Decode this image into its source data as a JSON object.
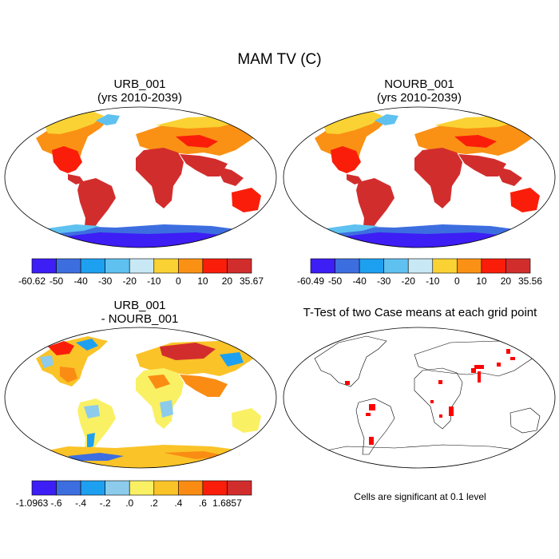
{
  "title": "MAM TV (C)",
  "panels": [
    {
      "id": "urb",
      "title_line1": "URB_001",
      "title_line2": "(yrs 2010-2039)"
    },
    {
      "id": "nourb",
      "title_line1": "NOURB_001",
      "title_line2": "(yrs 2010-2039)"
    },
    {
      "id": "diff",
      "title_line1": "URB_001",
      "title_line2": "- NOURB_001"
    },
    {
      "id": "ttest",
      "title_line1": "T-Test of two Case means at each grid point"
    }
  ],
  "colorbars": [
    {
      "labels": [
        "-60.62",
        "-50",
        "-40",
        "-30",
        "-20",
        "-10",
        "0",
        "10",
        "20",
        "35.67"
      ],
      "colors": [
        "#3d1ef5",
        "#3d6ee0",
        "#1ea0f0",
        "#5ec1f0",
        "#c8e8f5",
        "#fad233",
        "#fa9114",
        "#fa1e0a",
        "#d22d2d"
      ]
    },
    {
      "labels": [
        "-60.49",
        "-50",
        "-40",
        "-30",
        "-20",
        "-10",
        "0",
        "10",
        "20",
        "35.56"
      ],
      "colors": [
        "#3d1ef5",
        "#3d6ee0",
        "#1ea0f0",
        "#5ec1f0",
        "#c8e8f5",
        "#fad233",
        "#fa9114",
        "#fa1e0a",
        "#d22d2d"
      ]
    },
    {
      "labels": [
        "-1.0963",
        "-.6",
        "-.4",
        "-.2",
        ".0",
        ".2",
        ".4",
        ".6",
        "1.6857"
      ],
      "colors": [
        "#3d1ef5",
        "#3d6ee0",
        "#1ea0f0",
        "#8ccbeb",
        "#faf064",
        "#fac328",
        "#fa8c14",
        "#fa1e0a",
        "#d22d2d"
      ]
    }
  ],
  "significance_note": "Cells are significant at 0.1 level",
  "colors": {
    "warm": "#d22d2d",
    "hot": "#fa1e0a",
    "mid": "#fa9114",
    "yellow": "#fad233",
    "ice_light": "#5ec1f0",
    "ice_dark": "#3d1ef5",
    "significant": "#ff0000"
  }
}
